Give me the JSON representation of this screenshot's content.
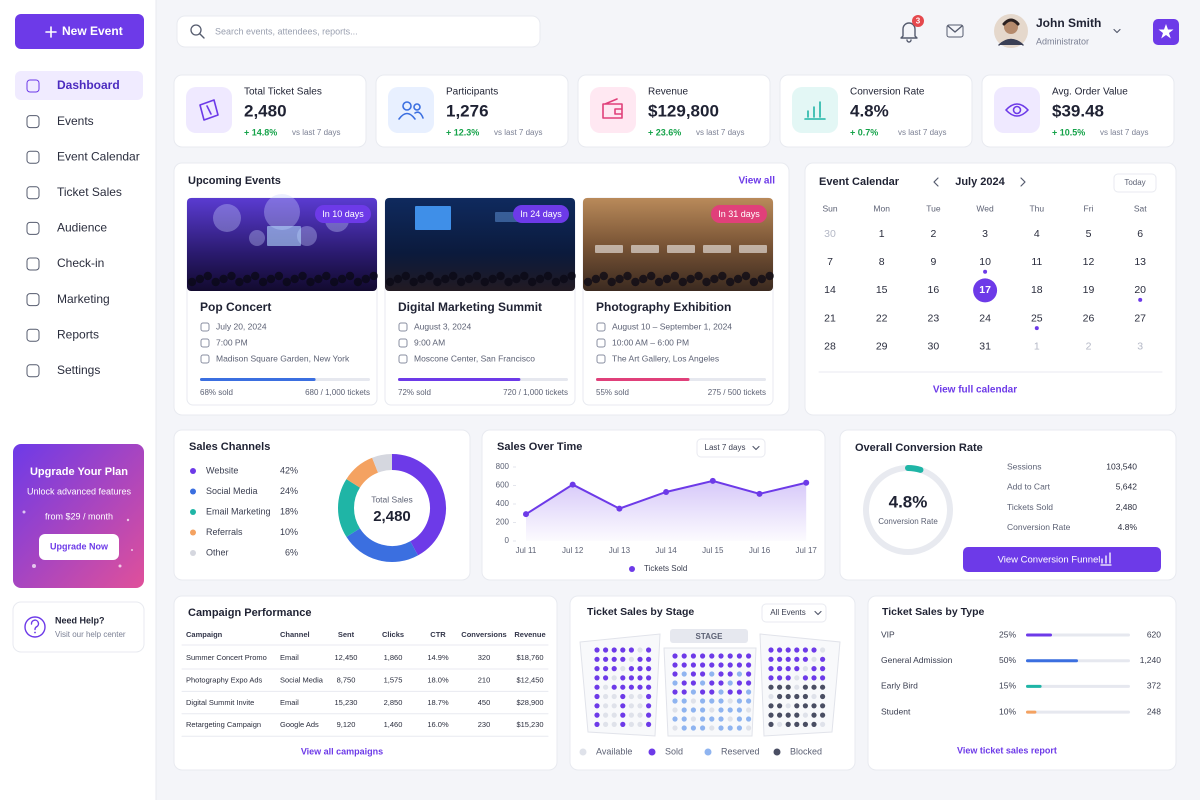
{
  "sidebar": {
    "new_event": "New Event",
    "nav": [
      "Dashboard",
      "Events",
      "Event Calendar",
      "Ticket Sales",
      "Audience",
      "Check-in",
      "Marketing",
      "Reports",
      "Settings"
    ],
    "active": 0,
    "upgrade": {
      "title": "Upgrade Your Plan",
      "subtitle": "Unlock advanced features",
      "price": "from $29 / month",
      "button": "Upgrade Now"
    },
    "help": {
      "title": "Need Help?",
      "subtitle": "Visit our help center"
    }
  },
  "header": {
    "search": "Search events, attendees, reports...",
    "notifications": "3",
    "user": {
      "name": "John Smith",
      "role": "Administrator"
    }
  },
  "kpis": [
    {
      "label": "Total Ticket Sales",
      "value": "2,480",
      "change": "+ 14.8%",
      "note": "vs last 7 days",
      "color": "#6d3ae8",
      "bg": "#efe9ff"
    },
    {
      "label": "Participants",
      "value": "1,276",
      "change": "+ 12.3%",
      "note": "vs last 7 days",
      "color": "#3b6fe0",
      "bg": "#e8f0ff"
    },
    {
      "label": "Revenue",
      "value": "$129,800",
      "change": "+ 23.6%",
      "note": "vs last 7 days",
      "color": "#e0407a",
      "bg": "#ffe8f2"
    },
    {
      "label": "Conversion Rate",
      "value": "4.8%",
      "change": "+ 0.7%",
      "note": "vs last 7 days",
      "color": "#1fb5a6",
      "bg": "#e3f7f5"
    },
    {
      "label": "Avg. Order Value",
      "value": "$39.48",
      "change": "+ 10.5%",
      "note": "vs last 7 days",
      "color": "#6d3ae8",
      "bg": "#efe9ff"
    }
  ],
  "upcoming": {
    "title": "Upcoming Events",
    "link": "View all",
    "events": [
      {
        "badge": "In 10 days",
        "badge_color": "#6d3ae8",
        "name": "Pop Concert",
        "date": "July 20, 2024",
        "time": "7:00 PM",
        "venue": "Madison Square Garden, New York",
        "sold": {
          "value": 68,
          "label": "68% sold"
        },
        "tickets": "680 / 1,000 tickets",
        "color": "#3b6fe0"
      },
      {
        "badge": "In 24 days",
        "badge_color": "#6d3ae8",
        "name": "Digital Marketing Summit",
        "date": "August 3, 2024",
        "time": "9:00 AM",
        "venue": "Moscone Center, San Francisco",
        "sold": {
          "value": 72,
          "label": "72% sold"
        },
        "tickets": "720 / 1,000 tickets",
        "color": "#6d3ae8"
      },
      {
        "badge": "In 31 days",
        "badge_color": "#e0407a",
        "name": "Photography Exhibition",
        "date": "August 10 – September 1, 2024",
        "time": "10:00 AM – 6:00 PM",
        "venue": "The Art Gallery, Los Angeles",
        "sold": {
          "value": 55,
          "label": "55% sold"
        },
        "tickets": "275 / 500 tickets",
        "color": "#e0407a"
      }
    ]
  },
  "calendar": {
    "title": "Event Calendar",
    "month": "July 2024",
    "today": "Today",
    "weekdays": [
      "Sun",
      "Mon",
      "Tue",
      "Wed",
      "Thu",
      "Fri",
      "Sat"
    ],
    "days": [
      {
        "day": "30",
        "muted": true
      },
      {
        "day": "1"
      },
      {
        "day": "2"
      },
      {
        "day": "3"
      },
      {
        "day": "4"
      },
      {
        "day": "5"
      },
      {
        "day": "6"
      },
      {
        "day": "7"
      },
      {
        "day": "8"
      },
      {
        "day": "9"
      },
      {
        "day": "10",
        "event": true
      },
      {
        "day": "11"
      },
      {
        "day": "12"
      },
      {
        "day": "13"
      },
      {
        "day": "14"
      },
      {
        "day": "15"
      },
      {
        "day": "16"
      },
      {
        "day": "17",
        "selected": true
      },
      {
        "day": "18"
      },
      {
        "day": "19"
      },
      {
        "day": "20",
        "event": true
      },
      {
        "day": "21"
      },
      {
        "day": "22"
      },
      {
        "day": "23"
      },
      {
        "day": "24"
      },
      {
        "day": "25",
        "event": true
      },
      {
        "day": "26"
      },
      {
        "day": "27"
      },
      {
        "day": "28"
      },
      {
        "day": "29"
      },
      {
        "day": "30"
      },
      {
        "day": "31"
      },
      {
        "day": "1",
        "muted": true
      },
      {
        "day": "2",
        "muted": true
      },
      {
        "day": "3",
        "muted": true
      }
    ],
    "link": "View full calendar"
  },
  "sales_channels": {
    "type": "pie",
    "title": "Sales Channels",
    "center_label": "Total Sales",
    "center_value": "2,480",
    "categories": [
      "Website",
      "Social Media",
      "Email Marketing",
      "Referrals",
      "Other"
    ],
    "values": [
      42,
      24,
      18,
      10,
      6
    ],
    "value_labels": [
      "42%",
      "24%",
      "18%",
      "10%",
      "6%"
    ],
    "colors": [
      "#6d3ae8",
      "#3b6fe0",
      "#1fb5a6",
      "#f4a261",
      "#d5d7df"
    ]
  },
  "sales_over_time": {
    "type": "line",
    "title": "Sales Over Time",
    "filter": "Last 7 days",
    "categories": [
      "Jul 11",
      "Jul 12",
      "Jul 13",
      "Jul 14",
      "Jul 15",
      "Jul 16",
      "Jul 17"
    ],
    "series": [
      {
        "name": "Tickets Sold",
        "color": "#6d3ae8",
        "values": [
          290,
          610,
          350,
          530,
          650,
          510,
          630
        ]
      }
    ],
    "ylim": [
      0,
      800
    ],
    "yticks": [
      0,
      200,
      400,
      600,
      800
    ],
    "grid": false
  },
  "conversion": {
    "title": "Overall Conversion Rate",
    "rate": {
      "value": 4.8,
      "label": "4.8%"
    },
    "rate_caption": "Conversion Rate",
    "color": "#1fb5a6",
    "stats": [
      [
        "Sessions",
        "103,540"
      ],
      [
        "Add to Cart",
        "5,642"
      ],
      [
        "Tickets Sold",
        "2,480"
      ],
      [
        "Conversion Rate",
        "4.8%"
      ]
    ],
    "button": "View Conversion Funnel"
  },
  "campaigns": {
    "title": "Campaign Performance",
    "columns": [
      "Campaign",
      "Channel",
      "Sent",
      "Clicks",
      "CTR",
      "Conversions",
      "Revenue"
    ],
    "rows": [
      [
        "Summer Concert Promo",
        "Email",
        "12,450",
        "1,860",
        "14.9%",
        "320",
        "$18,760"
      ],
      [
        "Photography Expo Ads",
        "Social Media",
        "8,750",
        "1,575",
        "18.0%",
        "210",
        "$12,450"
      ],
      [
        "Digital Summit Invite",
        "Email",
        "15,230",
        "2,850",
        "18.7%",
        "450",
        "$28,900"
      ],
      [
        "Retargeting Campaign",
        "Google Ads",
        "9,120",
        "1,460",
        "16.0%",
        "230",
        "$15,230"
      ]
    ],
    "link": "View all campaigns"
  },
  "seats": {
    "title": "Ticket Sales by Stage",
    "filter": "All Events",
    "stage": "STAGE",
    "legend": [
      {
        "name": "Available",
        "color": "#dfe2ea"
      },
      {
        "name": "Sold",
        "color": "#6d3ae8"
      },
      {
        "name": "Reserved",
        "color": "#8fb4f0"
      },
      {
        "name": "Blocked",
        "color": "#4a4e63"
      }
    ]
  },
  "ticket_types": {
    "title": "Ticket Sales by Type",
    "rows": [
      {
        "name": "VIP",
        "share": {
          "value": 25,
          "label": "25%"
        },
        "count": "620",
        "color": "#6d3ae8"
      },
      {
        "name": "General Admission",
        "share": {
          "value": 50,
          "label": "50%"
        },
        "count": "1,240",
        "color": "#3b6fe0"
      },
      {
        "name": "Early Bird",
        "share": {
          "value": 15,
          "label": "15%"
        },
        "count": "372",
        "color": "#1fb5a6"
      },
      {
        "name": "Student",
        "share": {
          "value": 10,
          "label": "10%"
        },
        "count": "248",
        "color": "#f4a261"
      }
    ],
    "link": "View ticket sales report"
  }
}
